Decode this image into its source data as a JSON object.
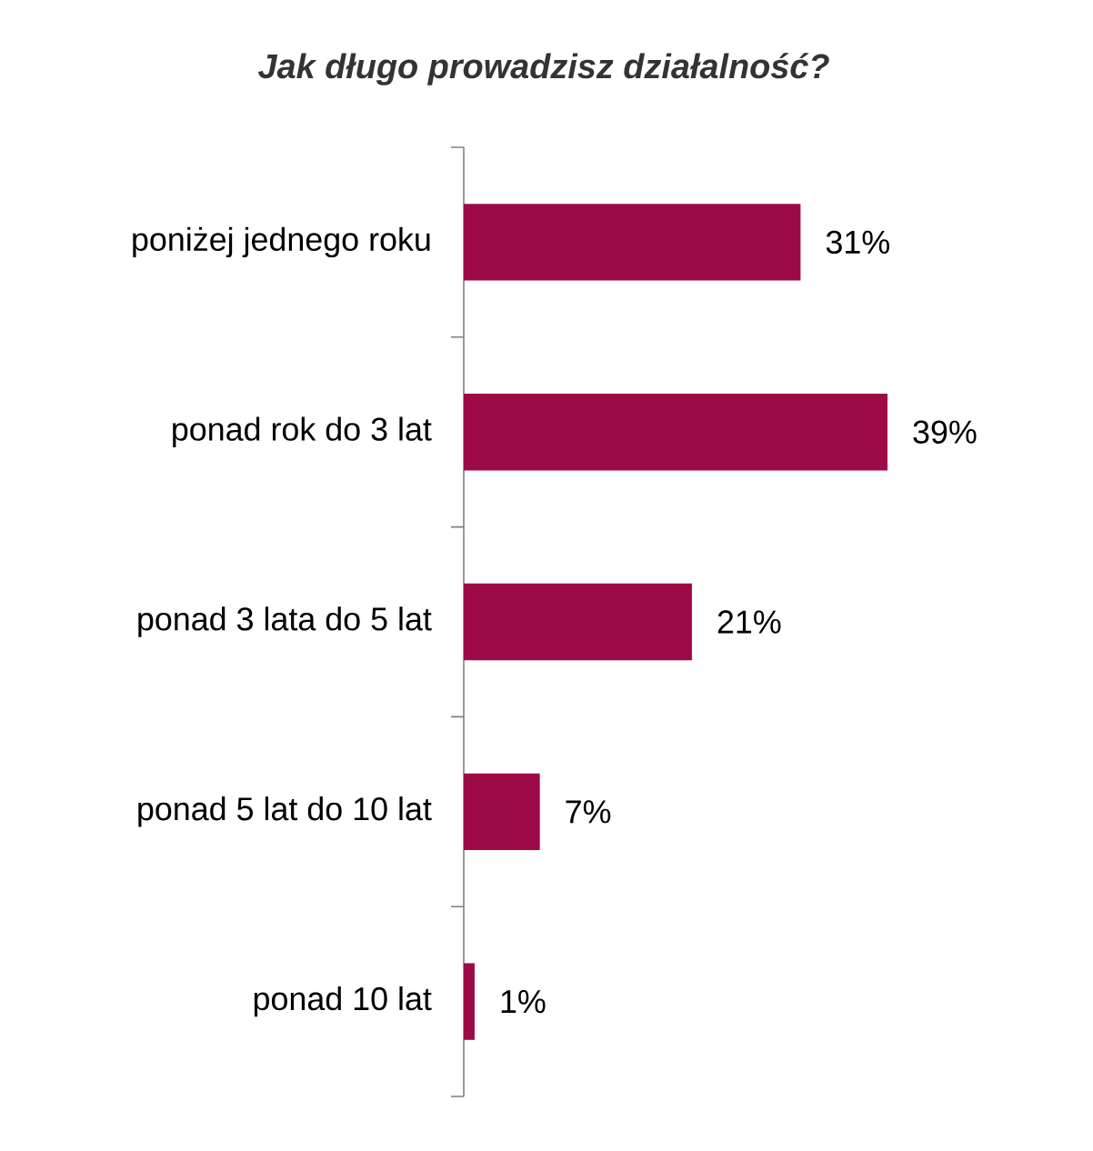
{
  "chart_data": {
    "type": "bar",
    "orientation": "horizontal",
    "title": "Jak długo prowadzisz działalność?",
    "categories": [
      "poniżej jednego roku",
      "ponad rok do 3 lat",
      "ponad 3 lata do 5 lat",
      "ponad 5 lat do 10 lat",
      "ponad 10 lat"
    ],
    "values": [
      31,
      39,
      21,
      7,
      1
    ],
    "color": "#9e0a48",
    "value_labels": [
      "31%",
      "39%",
      "21%",
      "7%",
      "1%"
    ]
  }
}
